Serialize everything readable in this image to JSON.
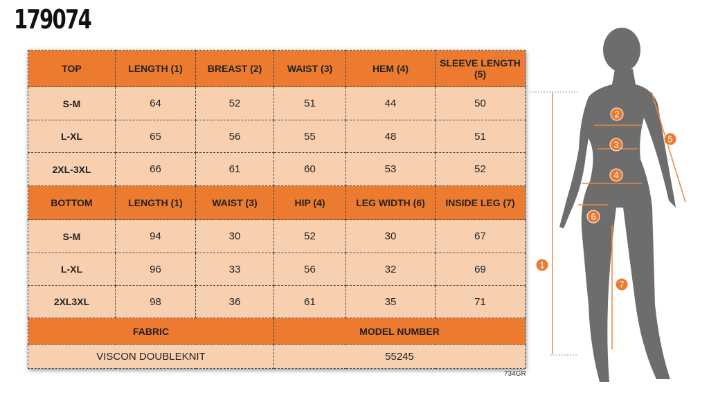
{
  "header": {
    "title": "179074"
  },
  "table": {
    "rows": [
      [
        "TOP",
        "LENGTH (1)",
        "BREAST (2)",
        "WAIST (3)",
        "HEM (4)",
        "SLEEVE LENGTH (5)"
      ],
      [
        "S-M",
        "64",
        "52",
        "51",
        "44",
        "50"
      ],
      [
        "L-XL",
        "65",
        "56",
        "55",
        "48",
        "51"
      ],
      [
        "2XL-3XL",
        "66",
        "61",
        "60",
        "53",
        "52"
      ],
      [
        "BOTTOM",
        "LENGTH (1)",
        "WAIST (3)",
        "HIP (4)",
        "LEG WIDTH (6)",
        "INSIDE LEG (7)"
      ],
      [
        "S-M",
        "94",
        "30",
        "52",
        "30",
        "67"
      ],
      [
        "L-XL",
        "96",
        "33",
        "56",
        "32",
        "69"
      ],
      [
        "2XL3XL",
        "98",
        "36",
        "61",
        "35",
        "71"
      ],
      [
        "FABRIC",
        "MODEL NUMBER"
      ],
      [
        "VISCON DOUBLEKNIT",
        "55245"
      ]
    ]
  },
  "footer_code": "734GR",
  "figure": {
    "markers": [
      "1",
      "2",
      "3",
      "4",
      "5",
      "6",
      "7"
    ]
  }
}
